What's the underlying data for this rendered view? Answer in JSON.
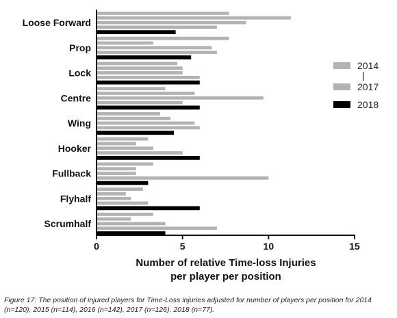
{
  "chart_data": {
    "type": "bar",
    "orientation": "horizontal",
    "categories": [
      "Loose Forward",
      "Prop",
      "Lock",
      "Centre",
      "Wing",
      "Hooker",
      "Fullback",
      "Flyhalf",
      "Scrumhalf"
    ],
    "series": [
      {
        "name": "2014",
        "color": "#b3b3b3",
        "values": [
          7.7,
          7.7,
          4.7,
          4.0,
          3.7,
          3.0,
          3.3,
          2.7,
          3.3
        ]
      },
      {
        "name": "",
        "color": "#b3b3b3",
        "values": [
          11.3,
          3.3,
          5.0,
          5.7,
          4.3,
          2.3,
          2.3,
          1.7,
          2.0
        ]
      },
      {
        "name": "",
        "color": "#b3b3b3",
        "values": [
          8.7,
          6.7,
          5.0,
          9.7,
          5.7,
          3.3,
          2.3,
          2.0,
          4.0
        ]
      },
      {
        "name": "2017",
        "color": "#b3b3b3",
        "values": [
          7.0,
          7.0,
          6.0,
          5.0,
          6.0,
          5.0,
          10.0,
          3.0,
          7.0
        ]
      },
      {
        "name": "2018",
        "color": "#000000",
        "values": [
          4.6,
          5.5,
          6.0,
          6.0,
          4.5,
          6.0,
          3.0,
          6.0,
          4.0
        ]
      }
    ],
    "xlim": [
      0,
      15
    ],
    "x_ticks": [
      "0",
      "5",
      "10",
      "15"
    ],
    "xlabel_line1": "Number of relative Time-loss Injuries",
    "xlabel_line2": "per player per position",
    "legend": {
      "placement": "right",
      "entries": [
        {
          "label": "2014",
          "color": "#b3b3b3"
        },
        {
          "label": "|",
          "color": ""
        },
        {
          "label": "2017",
          "color": "#b3b3b3"
        },
        {
          "label": "2018",
          "color": "#000000"
        }
      ]
    }
  },
  "caption": "Figure 17: The position of injured players for Time-Loss injuries adjusted for number of players per position for 2014 (n=120), 2015 (n=114), 2016 (n=142), 2017 (n=126), 2018 (n=77)."
}
